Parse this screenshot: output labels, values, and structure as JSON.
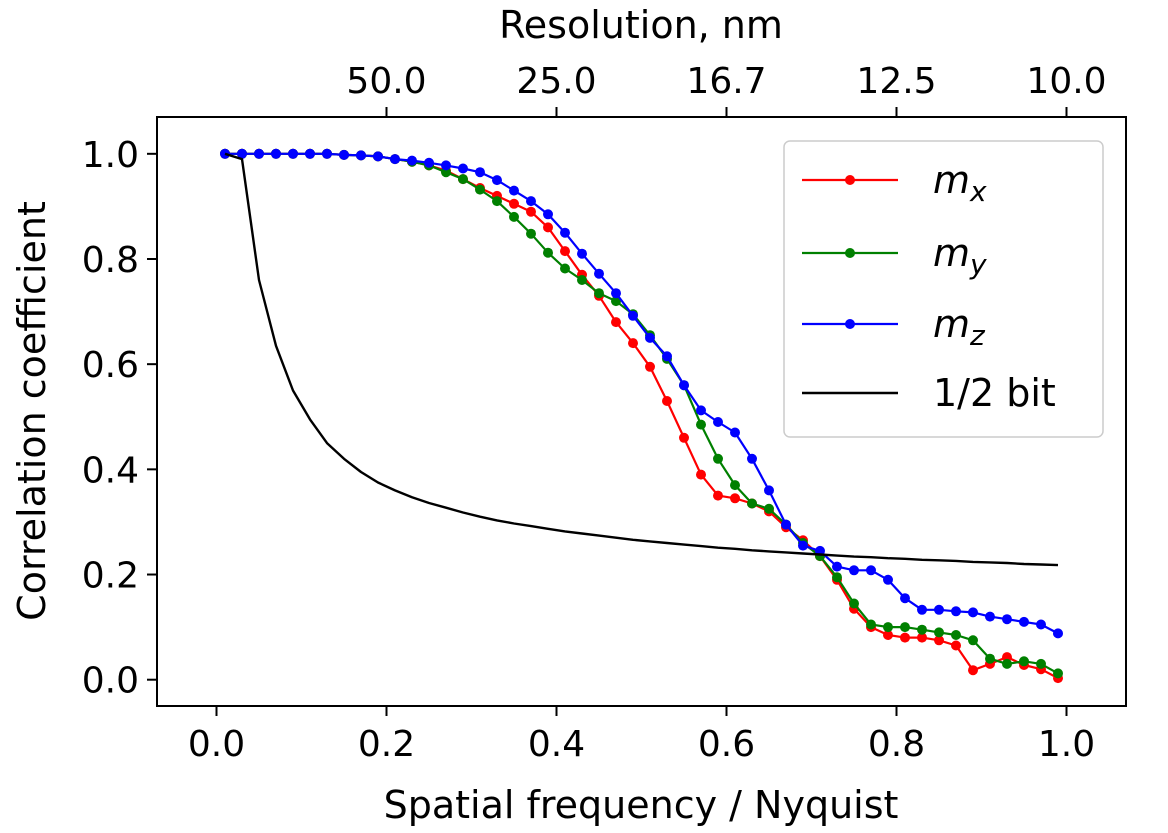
{
  "chart_data": {
    "type": "line",
    "xlabel": "Spatial frequency / Nyquist",
    "ylabel": "Correlation coefficient",
    "top_axis_label": "Resolution, nm",
    "xlim": [
      -0.07,
      1.07
    ],
    "ylim": [
      -0.05,
      1.07
    ],
    "x_ticks": [
      0.0,
      0.2,
      0.4,
      0.6,
      0.8,
      1.0
    ],
    "x_tick_labels": [
      "0.0",
      "0.2",
      "0.4",
      "0.6",
      "0.8",
      "1.0"
    ],
    "y_ticks": [
      0.0,
      0.2,
      0.4,
      0.6,
      0.8,
      1.0
    ],
    "y_tick_labels": [
      "0.0",
      "0.2",
      "0.4",
      "0.6",
      "0.8",
      "1.0"
    ],
    "top_ticks": [
      0.2,
      0.4,
      0.6,
      0.8,
      1.0
    ],
    "top_tick_labels": [
      "50.0",
      "25.0",
      "16.7",
      "12.5",
      "10.0"
    ],
    "legend_position": "top-right",
    "series": [
      {
        "name": "m",
        "subscript": "x",
        "color": "#ff0000",
        "markers": true,
        "x": [
          0.01,
          0.03,
          0.05,
          0.07,
          0.09,
          0.11,
          0.13,
          0.15,
          0.17,
          0.19,
          0.21,
          0.23,
          0.25,
          0.27,
          0.29,
          0.31,
          0.33,
          0.35,
          0.37,
          0.39,
          0.41,
          0.43,
          0.45,
          0.47,
          0.49,
          0.51,
          0.53,
          0.55,
          0.57,
          0.59,
          0.61,
          0.63,
          0.65,
          0.67,
          0.69,
          0.71,
          0.73,
          0.75,
          0.77,
          0.79,
          0.81,
          0.83,
          0.85,
          0.87,
          0.89,
          0.91,
          0.93,
          0.95,
          0.97,
          0.99
        ],
        "y": [
          1.0,
          1.0,
          1.0,
          1.0,
          1.0,
          1.0,
          1.0,
          0.998,
          0.997,
          0.995,
          0.99,
          0.985,
          0.978,
          0.968,
          0.952,
          0.935,
          0.92,
          0.905,
          0.89,
          0.86,
          0.815,
          0.77,
          0.73,
          0.68,
          0.64,
          0.595,
          0.53,
          0.46,
          0.39,
          0.35,
          0.345,
          0.335,
          0.32,
          0.29,
          0.265,
          0.235,
          0.19,
          0.135,
          0.1,
          0.085,
          0.08,
          0.08,
          0.075,
          0.065,
          0.018,
          0.03,
          0.043,
          0.028,
          0.02,
          0.003
        ]
      },
      {
        "name": "m",
        "subscript": "y",
        "color": "#008000",
        "markers": true,
        "x": [
          0.01,
          0.03,
          0.05,
          0.07,
          0.09,
          0.11,
          0.13,
          0.15,
          0.17,
          0.19,
          0.21,
          0.23,
          0.25,
          0.27,
          0.29,
          0.31,
          0.33,
          0.35,
          0.37,
          0.39,
          0.41,
          0.43,
          0.45,
          0.47,
          0.49,
          0.51,
          0.53,
          0.55,
          0.57,
          0.59,
          0.61,
          0.63,
          0.65,
          0.67,
          0.69,
          0.71,
          0.73,
          0.75,
          0.77,
          0.79,
          0.81,
          0.83,
          0.85,
          0.87,
          0.89,
          0.91,
          0.93,
          0.95,
          0.97,
          0.99
        ],
        "y": [
          1.0,
          1.0,
          1.0,
          1.0,
          1.0,
          1.0,
          1.0,
          0.998,
          0.997,
          0.995,
          0.99,
          0.985,
          0.978,
          0.965,
          0.952,
          0.932,
          0.91,
          0.88,
          0.848,
          0.812,
          0.782,
          0.76,
          0.735,
          0.72,
          0.695,
          0.655,
          0.61,
          0.56,
          0.485,
          0.42,
          0.37,
          0.335,
          0.325,
          0.295,
          0.26,
          0.235,
          0.195,
          0.145,
          0.105,
          0.1,
          0.1,
          0.095,
          0.09,
          0.085,
          0.075,
          0.04,
          0.03,
          0.035,
          0.03,
          0.012
        ]
      },
      {
        "name": "m",
        "subscript": "z",
        "color": "#0000ff",
        "markers": true,
        "x": [
          0.01,
          0.03,
          0.05,
          0.07,
          0.09,
          0.11,
          0.13,
          0.15,
          0.17,
          0.19,
          0.21,
          0.23,
          0.25,
          0.27,
          0.29,
          0.31,
          0.33,
          0.35,
          0.37,
          0.39,
          0.41,
          0.43,
          0.45,
          0.47,
          0.49,
          0.51,
          0.53,
          0.55,
          0.57,
          0.59,
          0.61,
          0.63,
          0.65,
          0.67,
          0.69,
          0.71,
          0.73,
          0.75,
          0.77,
          0.79,
          0.81,
          0.83,
          0.85,
          0.87,
          0.89,
          0.91,
          0.93,
          0.95,
          0.97,
          0.99
        ],
        "y": [
          1.0,
          1.0,
          1.0,
          1.0,
          1.0,
          1.0,
          1.0,
          0.998,
          0.997,
          0.995,
          0.99,
          0.987,
          0.983,
          0.978,
          0.972,
          0.965,
          0.95,
          0.93,
          0.91,
          0.885,
          0.85,
          0.81,
          0.772,
          0.735,
          0.692,
          0.65,
          0.615,
          0.56,
          0.512,
          0.49,
          0.47,
          0.42,
          0.36,
          0.295,
          0.255,
          0.245,
          0.215,
          0.208,
          0.208,
          0.19,
          0.155,
          0.133,
          0.133,
          0.13,
          0.128,
          0.12,
          0.115,
          0.11,
          0.105,
          0.088
        ]
      },
      {
        "name": "1/2 bit",
        "subscript": "",
        "color": "#000000",
        "markers": false,
        "x": [
          0.01,
          0.03,
          0.05,
          0.07,
          0.09,
          0.11,
          0.13,
          0.15,
          0.17,
          0.19,
          0.21,
          0.23,
          0.25,
          0.27,
          0.29,
          0.31,
          0.33,
          0.35,
          0.37,
          0.39,
          0.41,
          0.43,
          0.45,
          0.47,
          0.49,
          0.51,
          0.53,
          0.55,
          0.57,
          0.59,
          0.61,
          0.63,
          0.65,
          0.67,
          0.69,
          0.71,
          0.73,
          0.75,
          0.77,
          0.79,
          0.81,
          0.83,
          0.85,
          0.87,
          0.89,
          0.91,
          0.93,
          0.95,
          0.97,
          0.99
        ],
        "y": [
          1.0,
          0.99,
          0.76,
          0.635,
          0.55,
          0.495,
          0.45,
          0.42,
          0.395,
          0.375,
          0.36,
          0.347,
          0.336,
          0.327,
          0.318,
          0.31,
          0.303,
          0.297,
          0.292,
          0.287,
          0.282,
          0.278,
          0.274,
          0.27,
          0.266,
          0.263,
          0.26,
          0.257,
          0.254,
          0.251,
          0.249,
          0.246,
          0.244,
          0.242,
          0.24,
          0.238,
          0.236,
          0.234,
          0.233,
          0.231,
          0.23,
          0.228,
          0.227,
          0.226,
          0.224,
          0.223,
          0.222,
          0.22,
          0.219,
          0.218
        ]
      }
    ]
  }
}
